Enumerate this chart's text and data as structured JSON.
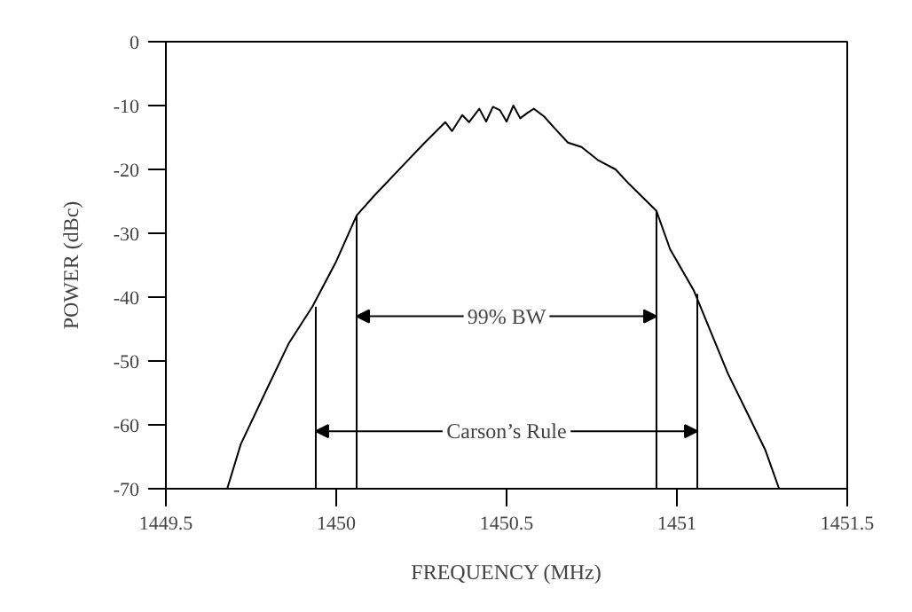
{
  "chart_data": {
    "type": "line",
    "xlabel": "FREQUENCY (MHz)",
    "ylabel": "POWER (dBc)",
    "xlim": [
      1449.5,
      1451.5
    ],
    "xticks": [
      1449.5,
      1450,
      1450.5,
      1451,
      1451.5
    ],
    "ylim": [
      -70,
      0
    ],
    "yticks": [
      0,
      -10,
      -20,
      -30,
      -40,
      -50,
      -60,
      -70
    ],
    "grid": false,
    "marker": "none",
    "line_style": "solid",
    "annotations": [
      {
        "text": "99% BW",
        "x": 1450.06,
        "y": -43
      },
      {
        "text": "Carson’s Rule",
        "x": 1449.94,
        "y": -61
      }
    ],
    "series": [
      {
        "color": "#000000",
        "x": [
          1449.68,
          1449.72,
          1449.8,
          1449.86,
          1449.93,
          1450.0,
          1450.06,
          1450.11,
          1450.21,
          1450.26,
          1450.32,
          1450.34,
          1450.37,
          1450.39,
          1450.42,
          1450.44,
          1450.46,
          1450.48,
          1450.5,
          1450.52,
          1450.54,
          1450.56,
          1450.58,
          1450.61,
          1450.64,
          1450.68,
          1450.72,
          1450.77,
          1450.82,
          1450.86,
          1450.94,
          1450.98,
          1451.05,
          1451.1,
          1451.15,
          1451.21,
          1451.26,
          1451.3
        ],
        "values": [
          -70,
          -63,
          -54,
          -47.3,
          -41.5,
          -34.4,
          -27.2,
          -24.2,
          -18.6,
          -15.8,
          -12.6,
          -14,
          -11.5,
          -12.6,
          -10.5,
          -12.5,
          -10.2,
          -10.7,
          -12.5,
          -10,
          -12,
          -11.2,
          -10.5,
          -11.7,
          -13.5,
          -15.8,
          -16.5,
          -18.6,
          -20,
          -22.3,
          -26.5,
          -32.5,
          -39,
          -45.5,
          -52,
          -58.5,
          -64,
          -70
        ]
      },
      {
        "color": "#000000",
        "x": [
          1449.94,
          1449.94
        ],
        "values": [
          -70,
          -41.5
        ]
      },
      {
        "color": "#000000",
        "x": [
          1450.06,
          1450.06
        ],
        "values": [
          -70,
          -27.2
        ]
      },
      {
        "color": "#000000",
        "x": [
          1450.94,
          1450.94
        ],
        "values": [
          -70,
          -26.5
        ]
      },
      {
        "color": "#000000",
        "x": [
          1451.06,
          1451.06
        ],
        "values": [
          -70,
          -39.5
        ]
      }
    ]
  }
}
